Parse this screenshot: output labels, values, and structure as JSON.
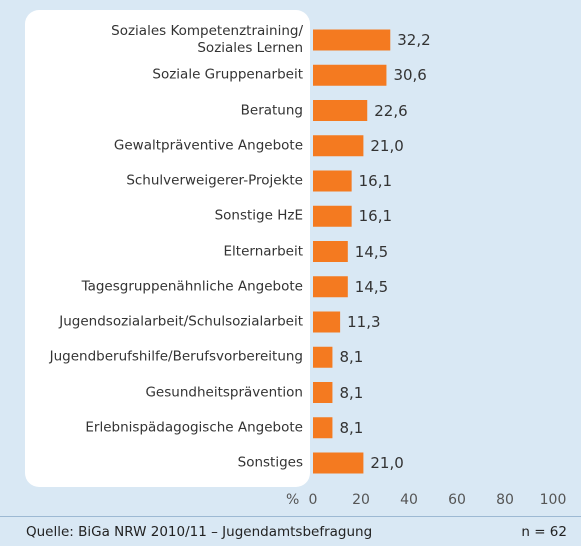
{
  "chart_data": {
    "type": "bar",
    "orientation": "horizontal",
    "categories": [
      "Soziales Kompetenztraining/\nSoziales Lernen",
      "Soziale Gruppenarbeit",
      "Beratung",
      "Gewaltpräventive Angebote",
      "Schulverweigerer-Projekte",
      "Sonstige HzE",
      "Elternarbeit",
      "Tagesgruppenähnliche Angebote",
      "Jugendsozialarbeit/Schulsozialarbeit",
      "Jugendberufshilfe/Berufsvorbereitung",
      "Gesundheitsprävention",
      "Erlebnispädagogische Angebote",
      "Sonstiges"
    ],
    "values": [
      32.2,
      30.6,
      22.6,
      21.0,
      16.1,
      16.1,
      14.5,
      14.5,
      11.3,
      8.1,
      8.1,
      8.1,
      21.0
    ],
    "value_labels": [
      "32,2",
      "30,6",
      "22,6",
      "21,0",
      "16,1",
      "16,1",
      "14,5",
      "14,5",
      "11,3",
      "8,1",
      "8,1",
      "8,1",
      "21,0"
    ],
    "color": "#f47a20",
    "xlabel": "%",
    "xlim": [
      0,
      100
    ],
    "xticks": [
      0,
      20,
      40,
      60,
      80,
      100
    ],
    "source": "Quelle: BiGa NRW 2010/11 – Jugendamtsbefragung",
    "note": "n = 62"
  }
}
